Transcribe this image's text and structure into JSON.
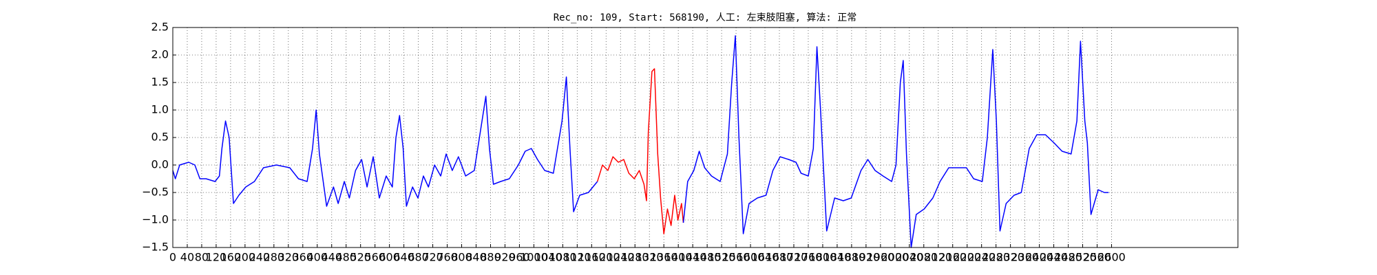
{
  "chart_data": {
    "type": "line",
    "title": "Rec_no: 109, Start: 568190, 人工: 左束肢阻塞, 算法: 正常",
    "xlim": [
      0,
      2950
    ],
    "xticks": [
      0,
      40,
      80,
      120,
      160,
      200,
      240,
      280,
      320,
      360,
      400,
      440,
      480,
      520,
      560,
      600,
      640,
      680,
      720,
      760,
      800,
      840,
      880,
      920,
      960,
      1000,
      1040,
      1080,
      1120,
      1160,
      1200,
      1240,
      1280,
      1320,
      1360,
      1400,
      1440,
      1480,
      1520,
      1560,
      1600,
      1640,
      1680,
      1720,
      1760,
      1800,
      1840,
      1880,
      1920,
      1960,
      2000,
      2040,
      2080,
      2120,
      2160,
      2200,
      2240,
      2280,
      2320,
      2360,
      2400,
      2440,
      2480,
      2520,
      2560,
      2600
    ],
    "ylim": [
      -1.5,
      2.5
    ],
    "yticks": [
      {
        "value": -1.5,
        "label": "−1.5"
      },
      {
        "value": -1,
        "label": "−1.0"
      },
      {
        "value": -0.5,
        "label": "−0.5"
      },
      {
        "value": 0,
        "label": "0.0"
      },
      0.5,
      {
        "value": 1,
        "label": "1.0"
      },
      1.5,
      {
        "value": 2,
        "label": "2.0"
      },
      2.5
    ],
    "grid": true,
    "series": [
      {
        "color": "#0000ff",
        "x": [
          0,
          7,
          19,
          44,
          61,
          75,
          92,
          117,
          129,
          136,
          146,
          156,
          168,
          183,
          202,
          226,
          251,
          287,
          324,
          348,
          372,
          387,
          397,
          406,
          426,
          445,
          458,
          475,
          489,
          506,
          523,
          538,
          555,
          572,
          591,
          608,
          618,
          628,
          638,
          647,
          664,
          679,
          694,
          708,
          725,
          742,
          757,
          774,
          791,
          811,
          835,
          854,
          867,
          877,
          888,
          908,
          932,
          957,
          976,
          993,
          1010,
          1030,
          1054,
          1078,
          1090,
          1100,
          1110,
          1127,
          1151,
          1176
        ],
        "values": [
          -0.1,
          -0.25,
          0.0,
          0.05,
          0.0,
          -0.25,
          -0.25,
          -0.3,
          -0.2,
          0.3,
          0.8,
          0.5,
          -0.7,
          -0.55,
          -0.4,
          -0.3,
          -0.05,
          0.0,
          -0.05,
          -0.25,
          -0.3,
          0.3,
          1.0,
          0.2,
          -0.75,
          -0.4,
          -0.7,
          -0.3,
          -0.6,
          -0.1,
          0.1,
          -0.4,
          0.15,
          -0.6,
          -0.2,
          -0.4,
          0.5,
          0.9,
          0.3,
          -0.75,
          -0.4,
          -0.6,
          -0.2,
          -0.4,
          0.0,
          -0.2,
          0.2,
          -0.1,
          0.15,
          -0.2,
          -0.1,
          0.7,
          1.25,
          0.3,
          -0.35,
          -0.3,
          -0.25,
          0.0,
          0.25,
          0.3,
          0.1,
          -0.1,
          -0.15,
          0.8,
          1.6,
          0.3,
          -0.85,
          -0.55,
          -0.5,
          -0.3
        ]
      },
      {
        "color": "#ff0000",
        "x": [
          1176,
          1190,
          1205,
          1219,
          1234,
          1249,
          1263,
          1278,
          1292,
          1305,
          1312,
          1317,
          1327,
          1334,
          1343,
          1351,
          1360,
          1370,
          1380,
          1390,
          1399,
          1409,
          1414
        ],
        "values": [
          -0.3,
          0.0,
          -0.1,
          0.15,
          0.05,
          0.1,
          -0.15,
          -0.25,
          -0.1,
          -0.35,
          -0.65,
          0.6,
          1.7,
          1.75,
          0.2,
          -0.6,
          -1.25,
          -0.8,
          -1.1,
          -0.55,
          -1.0,
          -0.7,
          -1.05
        ]
      },
      {
        "color": "#0000ff",
        "x": [
          1414,
          1426,
          1443,
          1458,
          1473,
          1492,
          1516,
          1536,
          1548,
          1558,
          1568,
          1580,
          1596,
          1619,
          1643,
          1662,
          1682,
          1706,
          1726,
          1740,
          1760,
          1774,
          1784,
          1794,
          1811,
          1833,
          1857,
          1879,
          1906,
          1925,
          1945,
          1967,
          1991,
          2003,
          2015,
          2023,
          2032,
          2045,
          2059,
          2081,
          2105,
          2125,
          2149,
          2174,
          2198,
          2218,
          2242,
          2256,
          2271,
          2281,
          2291,
          2308,
          2330,
          2350,
          2372,
          2393,
          2417,
          2441,
          2463,
          2488,
          2504,
          2514,
          2526,
          2533,
          2543,
          2563,
          2580,
          2592
        ],
        "values": [
          -1.05,
          -0.3,
          -0.1,
          0.25,
          -0.05,
          -0.2,
          -0.3,
          0.2,
          1.5,
          2.35,
          0.5,
          -1.25,
          -0.7,
          -0.6,
          -0.55,
          -0.1,
          0.15,
          0.1,
          0.05,
          -0.15,
          -0.2,
          0.3,
          2.15,
          1.0,
          -1.2,
          -0.6,
          -0.65,
          -0.6,
          -0.1,
          0.1,
          -0.1,
          -0.2,
          -0.3,
          0.0,
          1.5,
          1.9,
          0.2,
          -1.5,
          -0.9,
          -0.8,
          -0.6,
          -0.3,
          -0.05,
          -0.05,
          -0.05,
          -0.25,
          -0.3,
          0.5,
          2.1,
          0.8,
          -1.2,
          -0.7,
          -0.55,
          -0.5,
          0.3,
          0.55,
          0.55,
          0.4,
          0.25,
          0.2,
          0.8,
          2.25,
          0.8,
          0.4,
          -0.9,
          -0.45,
          -0.5,
          -0.5
        ]
      }
    ]
  }
}
